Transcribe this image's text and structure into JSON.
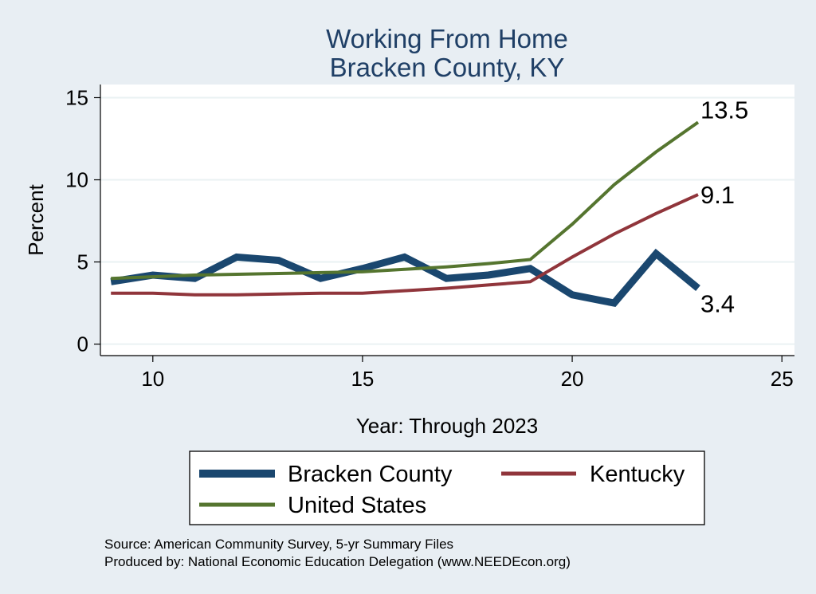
{
  "chart_data": {
    "type": "line",
    "title": [
      "Working From Home",
      "Bracken County, KY"
    ],
    "xlabel": "Year: Through 2023",
    "ylabel": "Percent",
    "xlim": [
      8.75,
      25.3
    ],
    "ylim": [
      -0.7,
      15.8
    ],
    "xticks": [
      10,
      15,
      20,
      25
    ],
    "yticks": [
      0,
      5,
      10,
      15
    ],
    "grid": true,
    "legend_position": "bottom",
    "x": [
      9,
      10,
      11,
      12,
      13,
      14,
      15,
      16,
      17,
      18,
      19,
      20,
      21,
      22,
      23
    ],
    "series": [
      {
        "name": "Bracken County",
        "color": "#1a476f",
        "width": 9,
        "values": [
          3.8,
          4.2,
          4.0,
          5.3,
          5.1,
          4.0,
          4.6,
          5.3,
          4.0,
          4.2,
          4.6,
          3.0,
          2.5,
          5.5,
          3.4
        ],
        "end_label": "3.4"
      },
      {
        "name": "Kentucky",
        "color": "#90353b",
        "width": 4,
        "values": [
          3.1,
          3.1,
          3.0,
          3.0,
          3.05,
          3.1,
          3.1,
          3.25,
          3.4,
          3.6,
          3.8,
          5.3,
          6.7,
          7.95,
          9.1
        ],
        "end_label": "9.1"
      },
      {
        "name": "United States",
        "color": "#55752f",
        "width": 4,
        "values": [
          4.0,
          4.1,
          4.2,
          4.25,
          4.3,
          4.35,
          4.4,
          4.55,
          4.7,
          4.9,
          5.15,
          7.3,
          9.7,
          11.7,
          13.5
        ],
        "end_label": "13.5"
      }
    ]
  },
  "notes": {
    "source": "Source: American Community Survey, 5-yr Summary Files",
    "producer": "Produced by: National Economic Education Delegation (www.NEEDEcon.org)"
  }
}
